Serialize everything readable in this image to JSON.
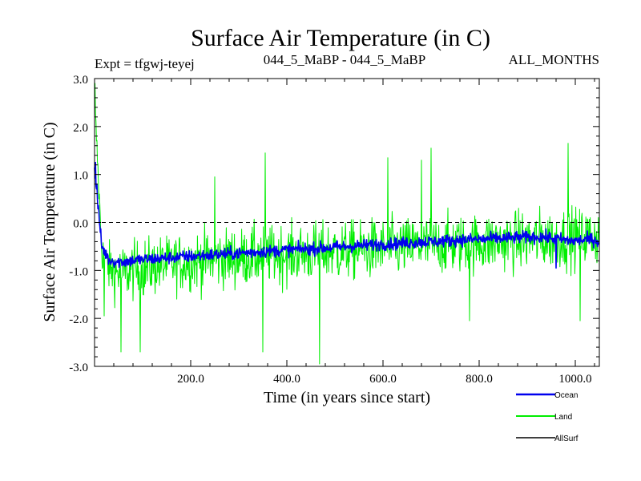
{
  "chart_data": {
    "type": "line",
    "title": "Surface Air Temperature (in C)",
    "subtitle_left": "Expt = tfgwj-teyej",
    "subtitle_center": "044_5_MaBP - 044_5_MaBP",
    "subtitle_right": "ALL_MONTHS",
    "xlabel": "Time (in years since start)",
    "ylabel": "Surface Air Temperature (in C)",
    "xlim": [
      0,
      1050
    ],
    "ylim": [
      -3.0,
      3.0
    ],
    "x_ticks": [
      200,
      400,
      600,
      800,
      1000
    ],
    "x_tick_labels": [
      "200.0",
      "400.0",
      "600.0",
      "800.0",
      "1000.0"
    ],
    "y_ticks": [
      3,
      2,
      1,
      0,
      -1,
      -2,
      -3
    ],
    "y_tick_labels": [
      "3.0",
      "2.0",
      "1.0",
      "0.0",
      "-1.0",
      "-2.0",
      "-3.0"
    ],
    "reference_line": 0.0,
    "series": [
      {
        "name": "Land",
        "color": "#00ee00",
        "x_step": 15,
        "mean": [
          2.6,
          -0.6,
          -0.95,
          -1.05,
          -1.05,
          -1.0,
          -0.98,
          -0.95,
          -0.92,
          -0.9,
          -0.88,
          -0.86,
          -0.84,
          -0.82,
          -0.8,
          -0.78,
          -0.77,
          -0.76,
          -0.75,
          -0.74,
          -0.73,
          -0.72,
          -0.71,
          -0.7,
          -0.69,
          -0.68,
          -0.67,
          -0.66,
          -0.65,
          -0.64,
          -0.63,
          -0.62,
          -0.61,
          -0.6,
          -0.6,
          -0.59,
          -0.58,
          -0.57,
          -0.56,
          -0.55,
          -0.54,
          -0.53,
          -0.52,
          -0.51,
          -0.5,
          -0.5,
          -0.49,
          -0.48,
          -0.47,
          -0.46,
          -0.45,
          -0.44,
          -0.44,
          -0.43,
          -0.42,
          -0.41,
          -0.4,
          -0.4,
          -0.39,
          -0.38,
          -0.37,
          -0.36,
          -0.35,
          -0.35,
          -0.34,
          -0.33,
          -0.32,
          -0.31,
          -0.3,
          -0.3,
          -0.3
        ],
        "spread": [
          0.4,
          0.7,
          0.9,
          1.0,
          1.0,
          1.05,
          1.0,
          1.1,
          1.0,
          1.05,
          1.0,
          1.0,
          1.05,
          1.0,
          1.05,
          1.1,
          1.0,
          1.05,
          1.0,
          1.1,
          1.05,
          1.0,
          1.1,
          1.05,
          1.0,
          1.05,
          1.1,
          1.0,
          1.05,
          1.0,
          1.1,
          1.05,
          1.0,
          1.05,
          1.1,
          1.0,
          1.05,
          1.0,
          1.1,
          1.05,
          1.0,
          1.05,
          1.1,
          1.0,
          1.05,
          1.0,
          1.1,
          1.05,
          1.0,
          1.05,
          1.1,
          1.0,
          1.05,
          1.0,
          1.1,
          1.05,
          1.0,
          1.05,
          1.1,
          1.0,
          1.05,
          1.0,
          1.1,
          1.05,
          1.0,
          1.05,
          1.1,
          1.0,
          1.05,
          1.0,
          1.0
        ],
        "extremes": [
          [
            1,
            2.9
          ],
          [
            20,
            -1.95
          ],
          [
            55,
            -2.7
          ],
          [
            95,
            -2.7
          ],
          [
            250,
            0.95
          ],
          [
            350,
            -2.7
          ],
          [
            355,
            1.45
          ],
          [
            468,
            -2.95
          ],
          [
            610,
            1.35
          ],
          [
            680,
            1.3
          ],
          [
            700,
            1.55
          ],
          [
            780,
            -2.05
          ],
          [
            985,
            1.65
          ],
          [
            1010,
            -2.05
          ]
        ]
      },
      {
        "name": "Ocean",
        "color": "#0000ee",
        "x_step": 15,
        "mean": [
          1.1,
          -0.5,
          -0.78,
          -0.82,
          -0.82,
          -0.8,
          -0.78,
          -0.77,
          -0.76,
          -0.75,
          -0.74,
          -0.73,
          -0.72,
          -0.71,
          -0.7,
          -0.69,
          -0.68,
          -0.67,
          -0.66,
          -0.65,
          -0.64,
          -0.63,
          -0.62,
          -0.61,
          -0.6,
          -0.59,
          -0.58,
          -0.57,
          -0.56,
          -0.55,
          -0.55,
          -0.54,
          -0.53,
          -0.52,
          -0.51,
          -0.5,
          -0.49,
          -0.48,
          -0.47,
          -0.46,
          -0.45,
          -0.45,
          -0.44,
          -0.43,
          -0.42,
          -0.41,
          -0.4,
          -0.4,
          -0.39,
          -0.38,
          -0.37,
          -0.36,
          -0.36,
          -0.35,
          -0.35,
          -0.34,
          -0.33,
          -0.33,
          -0.32,
          -0.31,
          -0.31,
          -0.3,
          -0.3,
          -0.32,
          -0.34,
          -0.36,
          -0.38,
          -0.38,
          -0.36,
          -0.35,
          -0.4
        ],
        "spread": [
          0.15,
          0.25,
          0.22,
          0.22,
          0.22,
          0.22,
          0.22,
          0.22,
          0.22,
          0.22,
          0.22,
          0.22,
          0.22,
          0.22,
          0.22,
          0.22,
          0.22,
          0.22,
          0.22,
          0.22,
          0.22,
          0.22,
          0.22,
          0.22,
          0.22,
          0.22,
          0.22,
          0.22,
          0.22,
          0.22,
          0.22,
          0.22,
          0.22,
          0.22,
          0.22,
          0.22,
          0.22,
          0.22,
          0.22,
          0.22,
          0.22,
          0.22,
          0.22,
          0.22,
          0.22,
          0.22,
          0.22,
          0.22,
          0.22,
          0.22,
          0.22,
          0.22,
          0.22,
          0.22,
          0.22,
          0.22,
          0.22,
          0.22,
          0.22,
          0.22,
          0.22,
          0.22,
          0.22,
          0.22,
          0.22,
          0.22,
          0.22,
          0.22,
          0.22,
          0.22,
          0.22
        ],
        "extremes": [
          [
            2,
            1.25
          ],
          [
            5,
            0.8
          ],
          [
            960,
            -0.95
          ]
        ]
      },
      {
        "name": "AllSurf",
        "color": "#000000",
        "x_step": 15,
        "mean": [],
        "spread": [],
        "extremes": []
      }
    ],
    "legend": [
      {
        "name": "Ocean",
        "color": "#0000ee"
      },
      {
        "name": "Land",
        "color": "#00ee00"
      },
      {
        "name": "AllSurf",
        "color": "#000000"
      }
    ],
    "legend_position": "bottom-right"
  }
}
